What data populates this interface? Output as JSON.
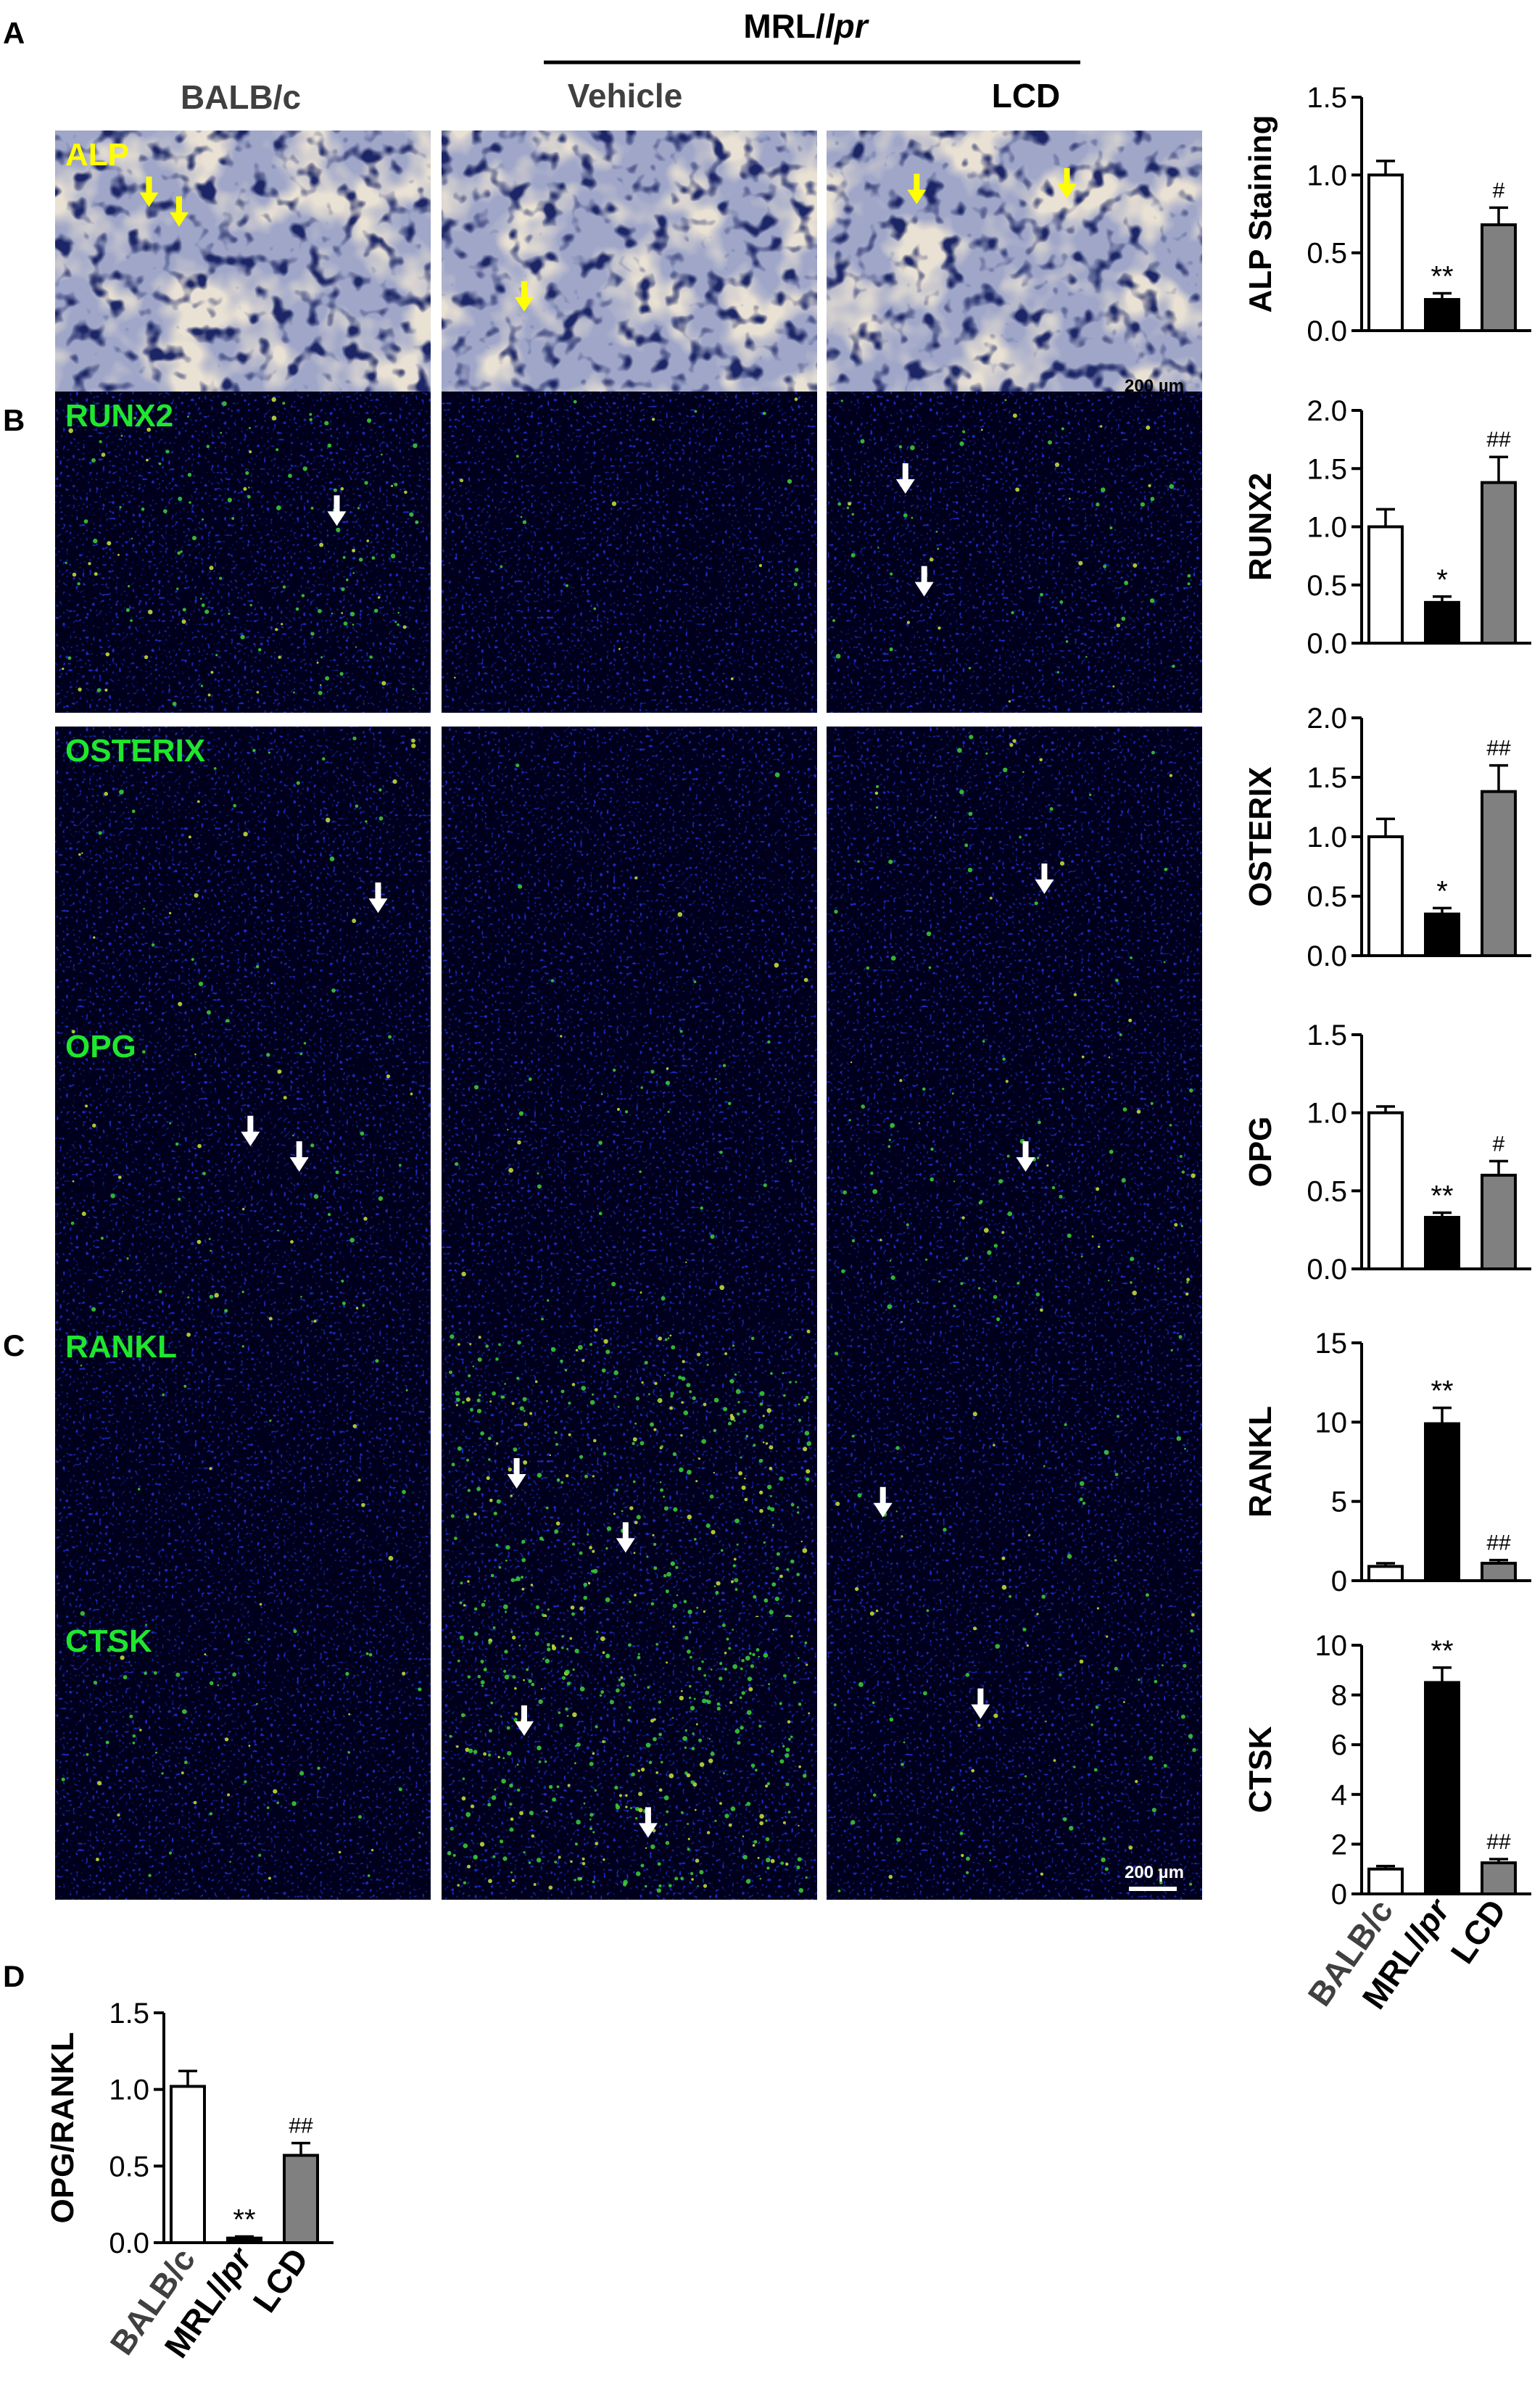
{
  "panel_letters": [
    "A",
    "B",
    "C",
    "D"
  ],
  "header": {
    "group_label_prefix": "MRL/",
    "group_label_italic": "lpr",
    "columns": [
      "BALB/c",
      "Vehicle",
      "LCD"
    ]
  },
  "image_panels": [
    {
      "label": "ALP",
      "label_color": "#ffff00",
      "style": "alp",
      "scale_bar": "200 µm"
    },
    {
      "label": "RUNX2",
      "label_color": "#1fe62e",
      "style": "fluo"
    },
    {
      "label": "OSTERIX",
      "label_color": "#1fe62e",
      "style": "fluo"
    },
    {
      "label": "OPG",
      "label_color": "#1fe62e",
      "style": "fluo"
    },
    {
      "label": "RANKL",
      "label_color": "#1fe62e",
      "style": "fluo"
    },
    {
      "label": "CTSK",
      "label_color": "#1fe62e",
      "style": "fluo",
      "scale_bar": "200 µm"
    }
  ],
  "colors": {
    "bar_fills": [
      "#ffffff",
      "#000000",
      "#808080"
    ],
    "alp_background": "#9fa6c8",
    "fluo_background": "#00001c",
    "arrow_alp": "#ffff00",
    "arrow_fluo": "#ffffff"
  },
  "chart_data": [
    {
      "type": "bar",
      "ylabel": "ALP Staining",
      "categories": [
        "BALB/c",
        "MRL/lpr",
        "LCD"
      ],
      "values": [
        1.0,
        0.2,
        0.68
      ],
      "errors": [
        0.09,
        0.04,
        0.11
      ],
      "ylim": [
        0,
        1.5
      ],
      "ticks": [
        "0.0",
        "0.5",
        "1.0",
        "1.5"
      ],
      "annotations": [
        "",
        "**",
        "#"
      ]
    },
    {
      "type": "bar",
      "ylabel": "RUNX2",
      "categories": [
        "BALB/c",
        "MRL/lpr",
        "LCD"
      ],
      "values": [
        1.0,
        0.35,
        1.38
      ],
      "errors": [
        0.15,
        0.05,
        0.22
      ],
      "ylim": [
        0,
        2.0
      ],
      "ticks": [
        "0.0",
        "0.5",
        "1.0",
        "1.5",
        "2.0"
      ],
      "annotations": [
        "",
        "*",
        "##"
      ]
    },
    {
      "type": "bar",
      "ylabel": "OSTERIX",
      "categories": [
        "BALB/c",
        "MRL/lpr",
        "LCD"
      ],
      "values": [
        1.0,
        0.35,
        1.38
      ],
      "errors": [
        0.15,
        0.05,
        0.22
      ],
      "ylim": [
        0,
        2.0
      ],
      "ticks": [
        "0.0",
        "0.5",
        "1.0",
        "1.5",
        "2.0"
      ],
      "annotations": [
        "",
        "*",
        "##"
      ]
    },
    {
      "type": "bar",
      "ylabel": "OPG",
      "categories": [
        "BALB/c",
        "MRL/lpr",
        "LCD"
      ],
      "values": [
        1.0,
        0.33,
        0.6
      ],
      "errors": [
        0.04,
        0.03,
        0.09
      ],
      "ylim": [
        0,
        1.5
      ],
      "ticks": [
        "0.0",
        "0.5",
        "1.0",
        "1.5"
      ],
      "annotations": [
        "",
        "**",
        "#"
      ]
    },
    {
      "type": "bar",
      "ylabel": "RANKL",
      "categories": [
        "BALB/c",
        "MRL/lpr",
        "LCD"
      ],
      "values": [
        0.9,
        9.9,
        1.1
      ],
      "errors": [
        0.2,
        1.0,
        0.2
      ],
      "ylim": [
        0,
        15
      ],
      "ticks": [
        "0",
        "5",
        "10",
        "15"
      ],
      "annotations": [
        "",
        "**",
        "##"
      ]
    },
    {
      "type": "bar",
      "ylabel": "CTSK",
      "categories": [
        "BALB/c",
        "MRL/lpr",
        "LCD"
      ],
      "values": [
        1.0,
        8.5,
        1.25
      ],
      "errors": [
        0.12,
        0.6,
        0.15
      ],
      "ylim": [
        0,
        10
      ],
      "ticks": [
        "0",
        "2",
        "4",
        "6",
        "8",
        "10"
      ],
      "annotations": [
        "",
        "**",
        "##"
      ],
      "show_xticks": true
    },
    {
      "type": "bar",
      "ylabel": "OPG/RANKL",
      "categories": [
        "BALB/c",
        "MRL/lpr",
        "LCD"
      ],
      "values": [
        1.02,
        0.03,
        0.57
      ],
      "errors": [
        0.1,
        0.01,
        0.08
      ],
      "ylim": [
        0,
        1.5
      ],
      "ticks": [
        "0.0",
        "0.5",
        "1.0",
        "1.5"
      ],
      "annotations": [
        "",
        "**",
        "##"
      ],
      "show_xticks": true
    }
  ]
}
